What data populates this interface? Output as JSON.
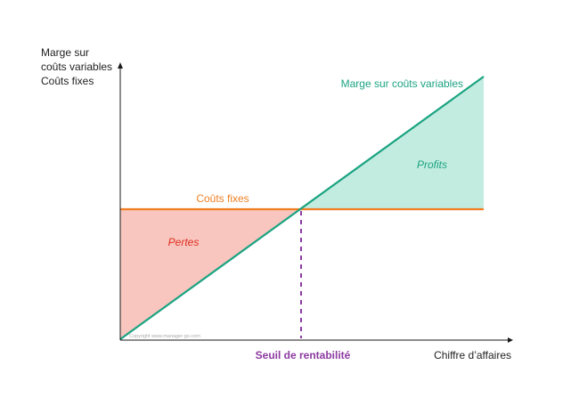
{
  "axes": {
    "y_label_lines": [
      "Marge sur",
      "coûts variables",
      "Coûts fixes"
    ],
    "x_label": "Chiffre d’affaires"
  },
  "labels": {
    "margin_line": "Marge sur coûts variables",
    "fixed_costs": "Coûts fixes",
    "profits": "Profits",
    "losses": "Pertes",
    "breakeven": "Seuil de rentabilité",
    "copyright": "Copyright www.manager-go.com"
  },
  "colors": {
    "axis": "#1a1a1a",
    "margin_line": "#1aa381",
    "fixed_costs": "#f07f22",
    "profits_fill": "#c3ece0",
    "losses_fill": "#f8c5bf",
    "losses_text": "#e02e1e",
    "breakeven": "#8c3aa0",
    "text": "#222222",
    "copyright": "#aaaaaa"
  }
}
